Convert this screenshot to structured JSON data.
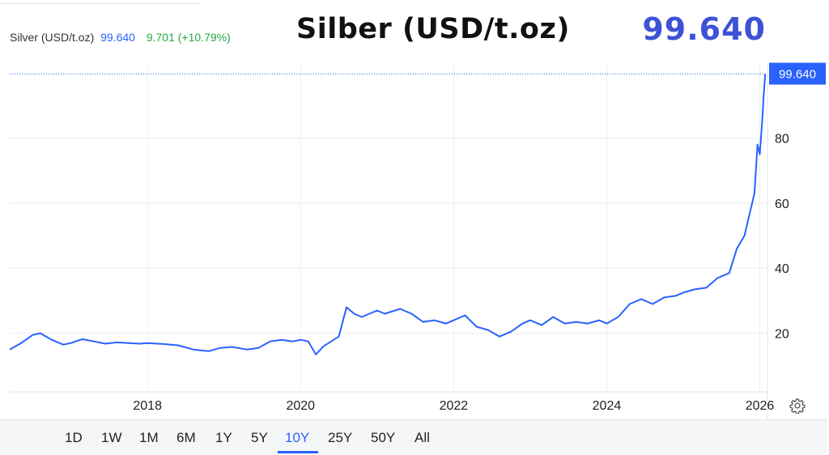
{
  "legend": {
    "symbol": "Silver (USD/t.oz)",
    "price": "99.640",
    "change": "9.701 (+10.79%)"
  },
  "headline": {
    "title": "Silber (USD/t.oz)",
    "price": "99.640"
  },
  "range_buttons": [
    {
      "label": "1D",
      "active": false
    },
    {
      "label": "1W",
      "active": false
    },
    {
      "label": "1M",
      "active": false
    },
    {
      "label": "6M",
      "active": false
    },
    {
      "label": "1Y",
      "active": false
    },
    {
      "label": "5Y",
      "active": false
    },
    {
      "label": "10Y",
      "active": true
    },
    {
      "label": "25Y",
      "active": false
    },
    {
      "label": "50Y",
      "active": false
    },
    {
      "label": "All",
      "active": false
    }
  ],
  "icons": {
    "settings": "gear-icon"
  },
  "colors": {
    "line": "#2962ff",
    "price_tag": "#2962ff",
    "change_positive": "#22ab45",
    "title_price": "#3d52d5"
  },
  "chart_data": {
    "type": "line",
    "title": "Silber (USD/t.oz)",
    "xlabel": "",
    "ylabel": "",
    "xlim": [
      2016.2,
      2026.1
    ],
    "ylim": [
      2,
      103
    ],
    "x_ticks": [
      2018,
      2020,
      2022,
      2024,
      2026
    ],
    "x_tick_labels": [
      "2018",
      "2020",
      "2022",
      "2024",
      "2026"
    ],
    "y_ticks": [
      20,
      40,
      60,
      80
    ],
    "y_tick_labels": [
      "20",
      "40",
      "60",
      "80"
    ],
    "grid": true,
    "legend_position": "top-left",
    "last_value": 99.64,
    "last_value_label": "99.640",
    "series": [
      {
        "x": [
          2016.2,
          2016.35,
          2016.5,
          2016.6,
          2016.75,
          2016.9,
          2017.0,
          2017.15,
          2017.3,
          2017.45,
          2017.6,
          2017.75,
          2017.9,
          2018.0,
          2018.2,
          2018.4,
          2018.6,
          2018.8,
          2018.95,
          2019.1,
          2019.3,
          2019.45,
          2019.6,
          2019.75,
          2019.9,
          2020.0,
          2020.1,
          2020.2,
          2020.3,
          2020.4,
          2020.5,
          2020.6,
          2020.7,
          2020.8,
          2021.0,
          2021.1,
          2021.3,
          2021.45,
          2021.6,
          2021.75,
          2021.9,
          2022.0,
          2022.15,
          2022.3,
          2022.45,
          2022.6,
          2022.75,
          2022.9,
          2023.0,
          2023.15,
          2023.3,
          2023.45,
          2023.6,
          2023.75,
          2023.9,
          2024.0,
          2024.15,
          2024.3,
          2024.45,
          2024.6,
          2024.75,
          2024.9,
          2025.0,
          2025.15,
          2025.3,
          2025.45,
          2025.6,
          2025.7,
          2025.8,
          2025.88,
          2025.93,
          2025.97,
          2026.0,
          2026.03,
          2026.05,
          2026.07
        ],
        "y": [
          15.0,
          17.0,
          19.5,
          20.0,
          18.0,
          16.5,
          17.0,
          18.2,
          17.5,
          16.8,
          17.2,
          17.0,
          16.8,
          17.0,
          16.7,
          16.3,
          15.0,
          14.5,
          15.5,
          15.8,
          15.0,
          15.5,
          17.5,
          18.0,
          17.5,
          18.0,
          17.5,
          13.5,
          16.0,
          17.5,
          19.0,
          28.0,
          26.0,
          25.0,
          27.0,
          26.0,
          27.5,
          26.0,
          23.5,
          24.0,
          23.0,
          24.0,
          25.5,
          22.0,
          21.0,
          19.0,
          20.5,
          23.0,
          24.0,
          22.5,
          25.0,
          23.0,
          23.5,
          23.0,
          24.0,
          23.0,
          25.0,
          29.0,
          30.5,
          29.0,
          31.0,
          31.5,
          32.5,
          33.5,
          34.0,
          37.0,
          38.5,
          46.0,
          50.0,
          58.0,
          63.0,
          78.0,
          75.0,
          85.0,
          93.0,
          99.64
        ]
      }
    ]
  }
}
